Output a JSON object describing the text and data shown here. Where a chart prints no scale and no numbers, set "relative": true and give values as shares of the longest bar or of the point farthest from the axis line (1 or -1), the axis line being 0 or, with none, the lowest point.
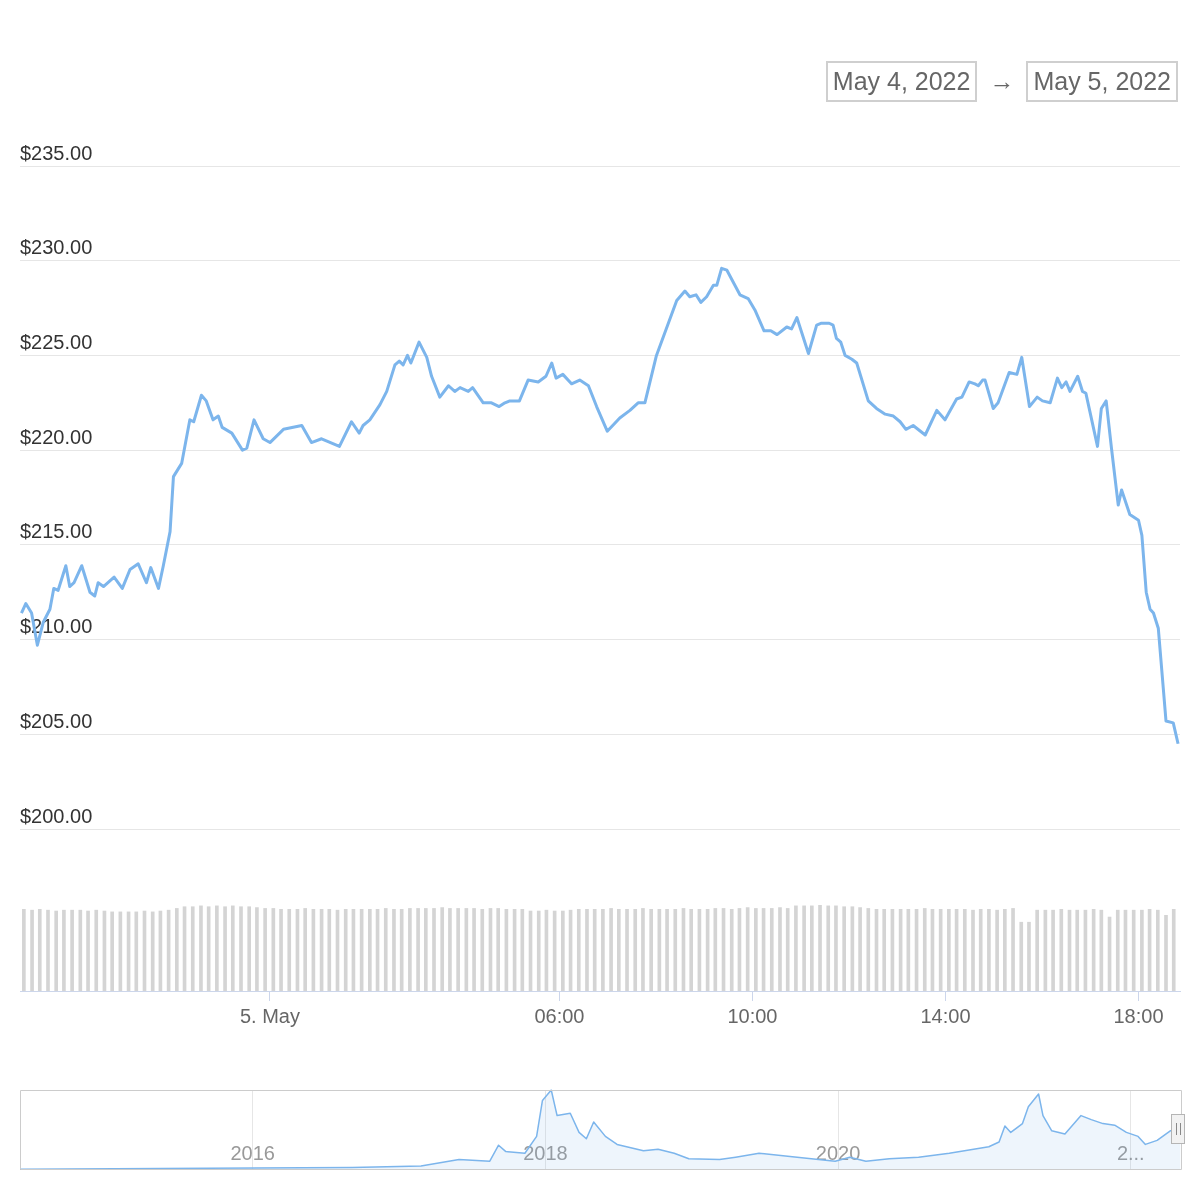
{
  "chart_data": [
    {
      "type": "line",
      "annotations": [
        "May 4, 2022",
        "→",
        "May 5, 2022"
      ],
      "color": "#7cb5ec",
      "marker": "none",
      "grid": "y",
      "tick_labels": "y",
      "xlim": [
        -5.18,
        18.86
      ],
      "ylim": [
        200,
        235
      ],
      "yticks": [
        {
          "value": 200,
          "label": "$200.00"
        },
        {
          "value": 205,
          "label": "$205.00"
        },
        {
          "value": 210,
          "label": "$210.00"
        },
        {
          "value": 215,
          "label": "$215.00"
        },
        {
          "value": 220,
          "label": "$220.00"
        },
        {
          "value": 225,
          "label": "$225.00"
        },
        {
          "value": 230,
          "label": "$230.00"
        },
        {
          "value": 235,
          "label": "$235.00"
        }
      ],
      "x": [
        -5.15,
        -5.06,
        -4.94,
        -4.82,
        -4.7,
        -4.56,
        -4.48,
        -4.39,
        -4.23,
        -4.15,
        -4.06,
        -3.9,
        -3.73,
        -3.63,
        -3.56,
        -3.45,
        -3.23,
        -3.06,
        -2.9,
        -2.73,
        -2.56,
        -2.47,
        -2.31,
        -2.21,
        -2.07,
        -2.0,
        -1.83,
        -1.66,
        -1.58,
        -1.42,
        -1.32,
        -1.18,
        -1.07,
        -0.99,
        -0.79,
        -0.57,
        -0.48,
        -0.33,
        -0.14,
        0,
        0.28,
        0.66,
        0.86,
        1.07,
        1.44,
        1.69,
        1.85,
        1.93,
        2.07,
        2.28,
        2.42,
        2.59,
        2.68,
        2.76,
        2.85,
        2.92,
        3.09,
        3.25,
        3.35,
        3.52,
        3.7,
        3.83,
        3.94,
        4.11,
        4.2,
        4.42,
        4.59,
        4.75,
        4.87,
        4.97,
        5.17,
        5.35,
        5.56,
        5.72,
        5.84,
        5.93,
        6.07,
        6.25,
        6.42,
        6.6,
        6.77,
        6.99,
        7.25,
        7.46,
        7.63,
        7.77,
        8.01,
        8.43,
        8.6,
        8.7,
        8.83,
        8.93,
        9.05,
        9.19,
        9.26,
        9.36,
        9.47,
        9.74,
        9.91,
        10.05,
        10.24,
        10.38,
        10.51,
        10.71,
        10.81,
        10.92,
        11.16,
        11.33,
        11.43,
        11.59,
        11.67,
        11.74,
        11.83,
        11.92,
        12.06,
        12.16,
        12.4,
        12.57,
        12.75,
        12.92,
        13.06,
        13.18,
        13.33,
        13.58,
        13.82,
        13.99,
        14.23,
        14.34,
        14.49,
        14.61,
        14.68,
        14.77,
        14.82,
        14.99,
        15.09,
        15.32,
        15.48,
        15.58,
        15.74,
        15.9,
        16.01,
        16.17,
        16.32,
        16.41,
        16.5,
        16.58,
        16.74,
        16.84,
        16.91,
        17.15,
        17.23,
        17.33,
        17.44,
        17.58,
        17.65,
        17.82,
        18.0,
        18.07,
        18.16,
        18.24,
        18.31,
        18.41,
        18.57,
        18.72,
        18.82
      ],
      "values": [
        211.4,
        211.9,
        211.4,
        209.7,
        210.9,
        211.6,
        212.7,
        212.6,
        213.9,
        212.8,
        213.0,
        213.9,
        212.5,
        212.3,
        213.0,
        212.8,
        213.3,
        212.7,
        213.7,
        214.0,
        213.0,
        213.8,
        212.7,
        213.9,
        215.7,
        218.6,
        219.3,
        221.6,
        221.5,
        222.9,
        222.6,
        221.6,
        221.8,
        221.2,
        220.9,
        220.0,
        220.1,
        221.6,
        220.6,
        220.4,
        221.1,
        221.3,
        220.4,
        220.6,
        220.2,
        221.5,
        220.9,
        221.3,
        221.6,
        222.4,
        223.1,
        224.5,
        224.7,
        224.5,
        225.0,
        224.6,
        225.7,
        224.9,
        223.9,
        222.8,
        223.4,
        223.1,
        223.3,
        223.1,
        223.3,
        222.5,
        222.5,
        222.3,
        222.5,
        222.6,
        222.6,
        223.7,
        223.6,
        223.9,
        224.6,
        223.8,
        224.0,
        223.5,
        223.7,
        223.4,
        222.3,
        221.0,
        221.7,
        222.1,
        222.5,
        222.5,
        225.0,
        227.9,
        228.4,
        228.1,
        228.2,
        227.8,
        228.1,
        228.7,
        228.7,
        229.6,
        229.5,
        228.2,
        228.0,
        227.4,
        226.3,
        226.3,
        226.1,
        226.5,
        226.4,
        227.0,
        225.1,
        226.6,
        226.7,
        226.7,
        226.6,
        225.9,
        225.7,
        225.0,
        224.8,
        224.6,
        222.6,
        222.2,
        221.9,
        221.8,
        221.5,
        221.1,
        221.3,
        220.8,
        222.1,
        221.6,
        222.7,
        222.8,
        223.6,
        223.5,
        223.4,
        223.7,
        223.7,
        222.2,
        222.5,
        224.1,
        224.0,
        224.9,
        222.3,
        222.8,
        222.6,
        222.5,
        223.8,
        223.3,
        223.6,
        223.1,
        223.9,
        223.1,
        223.0,
        220.2,
        222.2,
        222.6,
        220.1,
        217.1,
        217.9,
        216.6,
        216.3,
        215.5,
        212.5,
        211.6,
        211.4,
        210.6,
        205.7,
        205.6,
        204.5
      ]
    },
    {
      "type": "bar",
      "relative": true,
      "color": "#d4d4d4",
      "tick_labels": "x",
      "xlim": [
        -5.18,
        18.86
      ],
      "xticks": [
        {
          "value": 0,
          "label": "5. May"
        },
        {
          "value": 6,
          "label": "06:00"
        },
        {
          "value": 10,
          "label": "10:00"
        },
        {
          "value": 14,
          "label": "14:00"
        },
        {
          "value": 18,
          "label": "18:00"
        }
      ],
      "x": [
        -5.1,
        -4.93,
        -4.77,
        -4.6,
        -4.43,
        -4.27,
        -4.1,
        -3.93,
        -3.77,
        -3.6,
        -3.43,
        -3.27,
        -3.1,
        -2.93,
        -2.77,
        -2.6,
        -2.43,
        -2.27,
        -2.1,
        -1.93,
        -1.77,
        -1.6,
        -1.43,
        -1.27,
        -1.1,
        -0.93,
        -0.77,
        -0.6,
        -0.43,
        -0.27,
        -0.1,
        0.07,
        0.23,
        0.4,
        0.57,
        0.73,
        0.9,
        1.07,
        1.23,
        1.4,
        1.57,
        1.73,
        1.9,
        2.07,
        2.23,
        2.4,
        2.57,
        2.73,
        2.9,
        3.07,
        3.23,
        3.4,
        3.57,
        3.73,
        3.9,
        4.07,
        4.23,
        4.4,
        4.57,
        4.73,
        4.9,
        5.07,
        5.23,
        5.4,
        5.57,
        5.73,
        5.9,
        6.07,
        6.23,
        6.4,
        6.57,
        6.73,
        6.9,
        7.07,
        7.23,
        7.4,
        7.57,
        7.73,
        7.9,
        8.07,
        8.23,
        8.4,
        8.57,
        8.73,
        8.9,
        9.07,
        9.23,
        9.4,
        9.57,
        9.73,
        9.9,
        10.07,
        10.23,
        10.4,
        10.57,
        10.73,
        10.9,
        11.07,
        11.23,
        11.4,
        11.57,
        11.73,
        11.9,
        12.07,
        12.23,
        12.4,
        12.57,
        12.73,
        12.9,
        13.07,
        13.23,
        13.4,
        13.57,
        13.73,
        13.9,
        14.07,
        14.23,
        14.4,
        14.57,
        14.73,
        14.9,
        15.07,
        15.23,
        15.4,
        15.57,
        15.73,
        15.9,
        16.07,
        16.23,
        16.4,
        16.57,
        16.73,
        16.9,
        17.07,
        17.23,
        17.4,
        17.57,
        17.73,
        17.9,
        18.07,
        18.23,
        18.4,
        18.57,
        18.73
      ],
      "values": [
        0.95,
        0.94,
        0.95,
        0.94,
        0.93,
        0.94,
        0.94,
        0.94,
        0.93,
        0.94,
        0.93,
        0.92,
        0.92,
        0.92,
        0.92,
        0.93,
        0.92,
        0.93,
        0.94,
        0.96,
        0.98,
        0.98,
        0.99,
        0.98,
        0.99,
        0.98,
        0.99,
        0.98,
        0.98,
        0.97,
        0.96,
        0.96,
        0.95,
        0.95,
        0.95,
        0.96,
        0.95,
        0.95,
        0.95,
        0.94,
        0.95,
        0.95,
        0.95,
        0.95,
        0.95,
        0.96,
        0.95,
        0.95,
        0.96,
        0.96,
        0.96,
        0.96,
        0.97,
        0.96,
        0.96,
        0.96,
        0.96,
        0.95,
        0.96,
        0.96,
        0.95,
        0.95,
        0.95,
        0.93,
        0.93,
        0.94,
        0.93,
        0.93,
        0.94,
        0.95,
        0.95,
        0.95,
        0.95,
        0.96,
        0.95,
        0.95,
        0.95,
        0.96,
        0.95,
        0.95,
        0.95,
        0.95,
        0.96,
        0.95,
        0.95,
        0.95,
        0.96,
        0.96,
        0.95,
        0.96,
        0.97,
        0.96,
        0.96,
        0.96,
        0.97,
        0.96,
        0.99,
        0.99,
        0.99,
        1,
        0.99,
        0.99,
        0.98,
        0.98,
        0.97,
        0.96,
        0.95,
        0.95,
        0.95,
        0.95,
        0.95,
        0.95,
        0.96,
        0.95,
        0.95,
        0.95,
        0.95,
        0.95,
        0.94,
        0.95,
        0.95,
        0.94,
        0.95,
        0.96,
        0.8,
        0.8,
        0.94,
        0.94,
        0.94,
        0.95,
        0.94,
        0.94,
        0.94,
        0.95,
        0.94,
        0.86,
        0.94,
        0.94,
        0.94,
        0.94,
        0.95,
        0.94,
        0.88,
        0.95
      ]
    },
    {
      "type": "area",
      "relative": true,
      "color": "#7cb5ec",
      "marker": "none",
      "grid": "x",
      "tick_labels": "x",
      "xlim": [
        2014.41,
        2022.35
      ],
      "xticks": [
        2016,
        2018,
        2020,
        {
          "value": 2022,
          "label": "2..."
        }
      ],
      "x": [
        2014.41,
        2016.68,
        2017.15,
        2017.41,
        2017.62,
        2017.68,
        2017.73,
        2017.86,
        2017.94,
        2017.98,
        2018.04,
        2018.08,
        2018.17,
        2018.23,
        2018.28,
        2018.33,
        2018.41,
        2018.49,
        2018.67,
        2018.77,
        2018.88,
        2018.98,
        2019.19,
        2019.3,
        2019.46,
        2019.72,
        2019.98,
        2020.08,
        2020.19,
        2020.35,
        2020.55,
        2020.76,
        2021.03,
        2021.1,
        2021.14,
        2021.18,
        2021.26,
        2021.3,
        2021.37,
        2021.4,
        2021.46,
        2021.55,
        2021.66,
        2021.73,
        2021.81,
        2021.89,
        2021.97,
        2022.05,
        2022.1,
        2022.18,
        2022.27,
        2022.34
      ],
      "values": [
        0.01,
        0.03,
        0.05,
        0.13,
        0.11,
        0.31,
        0.23,
        0.21,
        0.42,
        0.87,
        1,
        0.68,
        0.71,
        0.47,
        0.39,
        0.6,
        0.42,
        0.32,
        0.24,
        0.26,
        0.21,
        0.14,
        0.13,
        0.16,
        0.21,
        0.16,
        0.11,
        0.16,
        0.11,
        0.14,
        0.16,
        0.21,
        0.29,
        0.35,
        0.55,
        0.47,
        0.58,
        0.79,
        0.95,
        0.68,
        0.49,
        0.45,
        0.68,
        0.63,
        0.58,
        0.56,
        0.47,
        0.42,
        0.32,
        0.37,
        0.49,
        0.5
      ]
    }
  ]
}
